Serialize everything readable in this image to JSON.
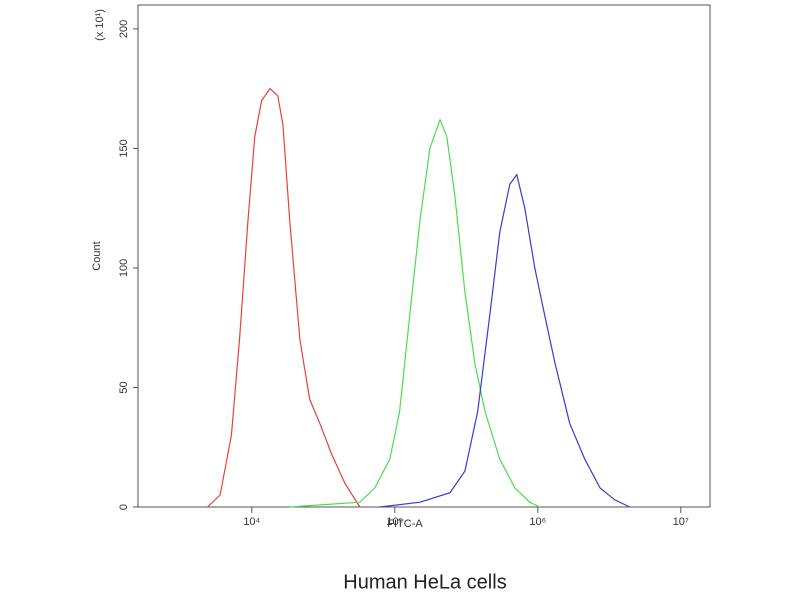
{
  "chart_data": {
    "type": "line",
    "caption": "Human HeLa cells",
    "x_label": "FITC-A",
    "y_label": "Count",
    "y_multiplier": "(x 10¹)",
    "x_log": true,
    "xlim": [
      1600,
      16000000
    ],
    "ylim": [
      0,
      210
    ],
    "xticks": [
      {
        "value": 10000,
        "label": "10⁴"
      },
      {
        "value": 100000,
        "label": "10⁵"
      },
      {
        "value": 1000000,
        "label": "10⁶"
      },
      {
        "value": 10000000,
        "label": "10⁷"
      }
    ],
    "yticks": [
      0,
      50,
      100,
      150,
      200
    ],
    "series": [
      {
        "color": "#e8413c",
        "x": [
          4900,
          6000,
          7200,
          8200,
          9400,
          10500,
          11700,
          13400,
          15200,
          16500,
          18400,
          21700,
          25400,
          29900,
          36200,
          44700,
          56900
        ],
        "values": [
          0,
          5,
          30,
          70,
          120,
          155,
          170,
          175,
          172,
          160,
          120,
          70,
          45,
          35,
          22,
          10,
          0
        ]
      },
      {
        "color": "#49e04a",
        "x": [
          18400,
          56900,
          72400,
          92200,
          108000,
          127000,
          150000,
          176000,
          207000,
          231000,
          263000,
          309000,
          363000,
          427000,
          542000,
          690000,
          879000,
          1030000
        ],
        "values": [
          0,
          2,
          8,
          20,
          40,
          80,
          120,
          150,
          162,
          155,
          130,
          90,
          60,
          40,
          20,
          8,
          2,
          0
        ]
      },
      {
        "color": "#3a3ad0",
        "x": [
          78500,
          150000,
          243000,
          309000,
          380000,
          461000,
          542000,
          637000,
          713000,
          811000,
          953000,
          1120000,
          1320000,
          1670000,
          2130000,
          2720000,
          3450000,
          4390000
        ],
        "values": [
          0,
          2,
          6,
          15,
          40,
          80,
          115,
          135,
          139,
          125,
          100,
          80,
          60,
          35,
          20,
          8,
          3,
          0
        ]
      }
    ]
  }
}
